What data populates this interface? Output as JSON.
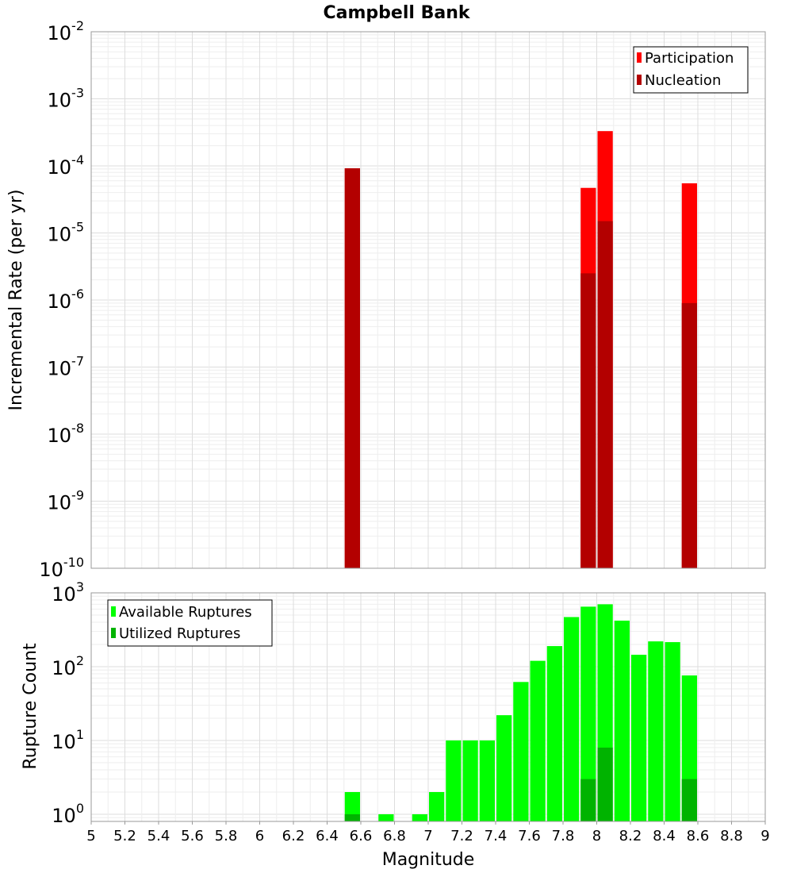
{
  "chart_data": [
    {
      "type": "bar",
      "title": "Campbell Bank",
      "xlabel": "",
      "ylabel": "Incremental Rate (per yr)",
      "yscale": "log",
      "ylim": [
        1e-10,
        0.01
      ],
      "xlim": [
        5,
        9
      ],
      "grid": true,
      "legend_position": "top-right",
      "series": [
        {
          "name": "Participation",
          "color": "#ff0000",
          "points": [
            {
              "x": 6.55,
              "y": 9.2e-05
            },
            {
              "x": 7.95,
              "y": 4.7e-05
            },
            {
              "x": 8.05,
              "y": 0.00033
            },
            {
              "x": 8.55,
              "y": 5.5e-05
            }
          ]
        },
        {
          "name": "Nucleation",
          "color": "#b30000",
          "points": [
            {
              "x": 6.55,
              "y": 9.2e-05
            },
            {
              "x": 7.95,
              "y": 2.5e-06
            },
            {
              "x": 8.05,
              "y": 1.5e-05
            },
            {
              "x": 8.55,
              "y": 9e-07
            }
          ]
        }
      ]
    },
    {
      "type": "bar",
      "title": "",
      "xlabel": "Magnitude",
      "ylabel": "Rupture Count",
      "yscale": "log",
      "ylim": [
        0.8,
        1000
      ],
      "xlim": [
        5,
        9
      ],
      "grid": true,
      "legend_position": "top-left",
      "series": [
        {
          "name": "Available Ruptures",
          "color": "#00ff00",
          "points": [
            {
              "x": 6.55,
              "y": 2
            },
            {
              "x": 6.75,
              "y": 1
            },
            {
              "x": 6.95,
              "y": 1
            },
            {
              "x": 7.05,
              "y": 2
            },
            {
              "x": 7.15,
              "y": 10
            },
            {
              "x": 7.25,
              "y": 10
            },
            {
              "x": 7.35,
              "y": 10
            },
            {
              "x": 7.45,
              "y": 22
            },
            {
              "x": 7.55,
              "y": 62
            },
            {
              "x": 7.65,
              "y": 120
            },
            {
              "x": 7.75,
              "y": 190
            },
            {
              "x": 7.85,
              "y": 470
            },
            {
              "x": 7.95,
              "y": 650
            },
            {
              "x": 8.05,
              "y": 700
            },
            {
              "x": 8.15,
              "y": 420
            },
            {
              "x": 8.25,
              "y": 145
            },
            {
              "x": 8.35,
              "y": 220
            },
            {
              "x": 8.45,
              "y": 215
            },
            {
              "x": 8.55,
              "y": 76
            }
          ]
        },
        {
          "name": "Utilized Ruptures",
          "color": "#00b300",
          "points": [
            {
              "x": 6.55,
              "y": 1
            },
            {
              "x": 7.95,
              "y": 3
            },
            {
              "x": 8.05,
              "y": 8
            },
            {
              "x": 8.55,
              "y": 3
            }
          ]
        }
      ]
    }
  ],
  "top_yticks": [
    {
      "base": "10",
      "exp": "-10",
      "value": 1e-10
    },
    {
      "base": "10",
      "exp": "-9",
      "value": 1e-09
    },
    {
      "base": "10",
      "exp": "-8",
      "value": 1e-08
    },
    {
      "base": "10",
      "exp": "-7",
      "value": 1e-07
    },
    {
      "base": "10",
      "exp": "-6",
      "value": 1e-06
    },
    {
      "base": "10",
      "exp": "-5",
      "value": 1e-05
    },
    {
      "base": "10",
      "exp": "-4",
      "value": 0.0001
    },
    {
      "base": "10",
      "exp": "-3",
      "value": 0.001
    },
    {
      "base": "10",
      "exp": "-2",
      "value": 0.01
    }
  ],
  "bottom_yticks": [
    {
      "base": "10",
      "exp": "0",
      "value": 1
    },
    {
      "base": "10",
      "exp": "1",
      "value": 10
    },
    {
      "base": "10",
      "exp": "2",
      "value": 100
    },
    {
      "base": "10",
      "exp": "3",
      "value": 1000
    }
  ],
  "xticks": [
    "5",
    "5.2",
    "5.4",
    "5.6",
    "5.8",
    "6",
    "6.2",
    "6.4",
    "6.6",
    "6.8",
    "7",
    "7.2",
    "7.4",
    "7.6",
    "7.8",
    "8",
    "8.2",
    "8.4",
    "8.6",
    "8.8",
    "9"
  ]
}
